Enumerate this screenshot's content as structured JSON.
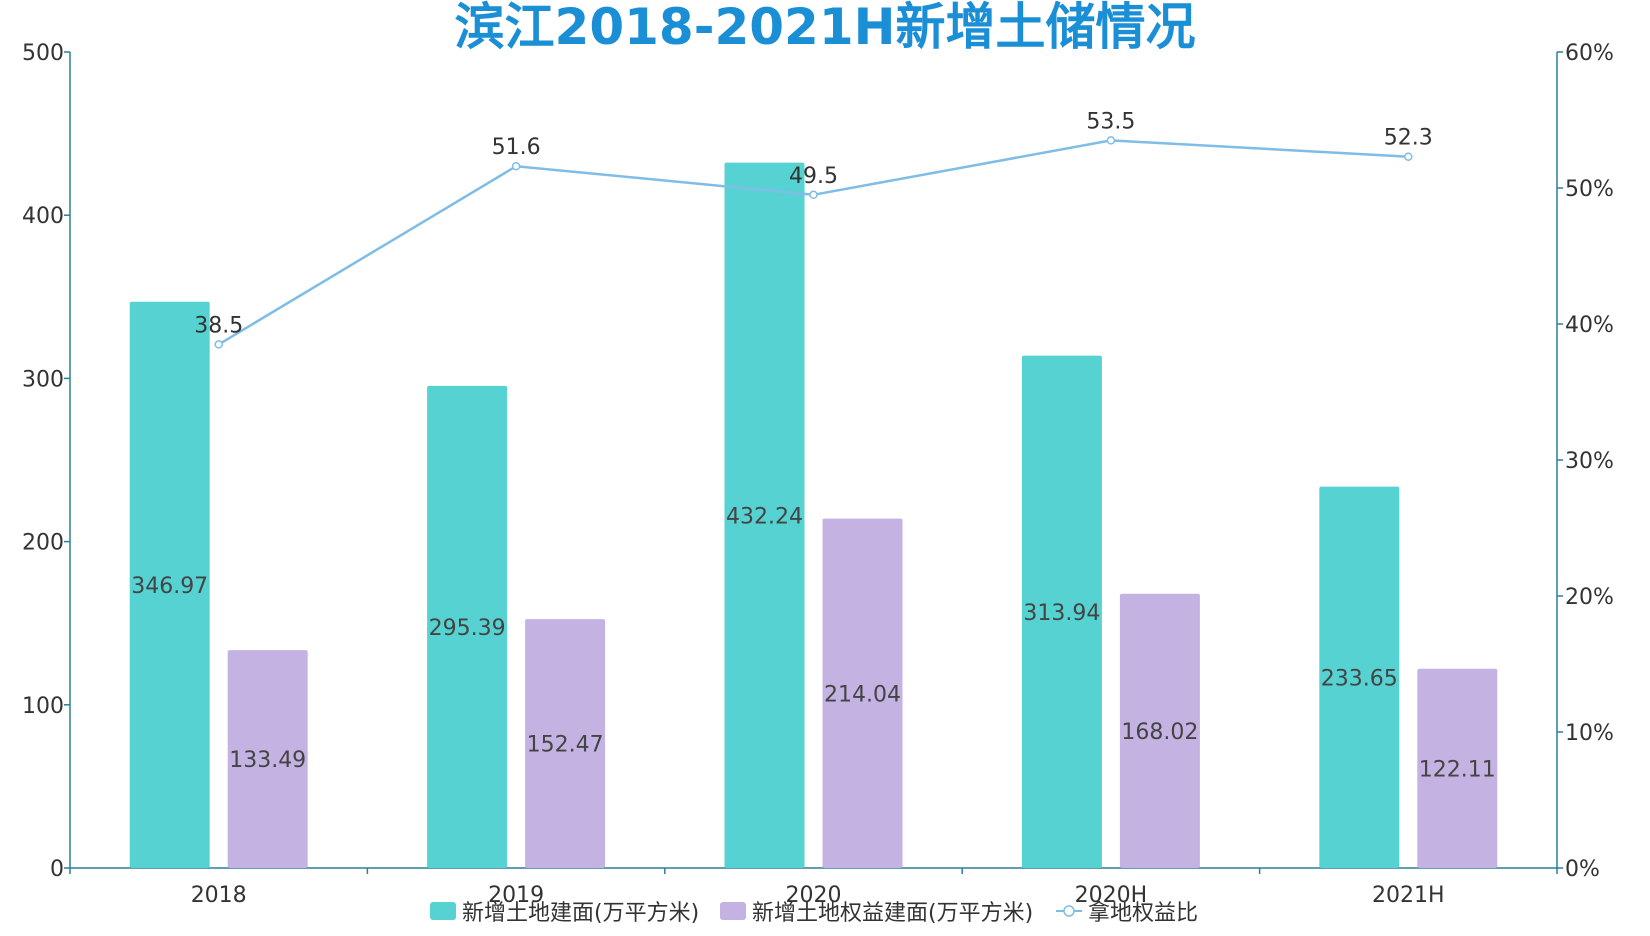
{
  "chart_data": {
    "type": "bar",
    "title": "滨江2018-2021H新增土储情况",
    "categories": [
      "2018",
      "2019",
      "2020",
      "2020H",
      "2021H"
    ],
    "series": [
      {
        "name": "新增土地建面(万平方米)",
        "kind": "bar",
        "axis": "left",
        "color": "#56d2d2",
        "values": [
          346.97,
          295.39,
          432.24,
          313.94,
          233.65
        ],
        "labels": [
          "346.97",
          "295.39",
          "432.24",
          "313.94",
          "233.65"
        ]
      },
      {
        "name": "新增土地权益建面(万平方米)",
        "kind": "bar",
        "axis": "left",
        "color": "#c4b3e2",
        "values": [
          133.49,
          152.47,
          214.04,
          168.02,
          122.11
        ],
        "labels": [
          "133.49",
          "152.47",
          "214.04",
          "168.02",
          "122.11"
        ]
      },
      {
        "name": "拿地权益比",
        "kind": "line",
        "axis": "right",
        "color": "#7fbde6",
        "values": [
          38.5,
          51.6,
          49.5,
          53.5,
          52.3
        ],
        "labels": [
          "38.5",
          "51.6",
          "49.5",
          "53.5",
          "52.3"
        ]
      }
    ],
    "y_left": {
      "min": 0,
      "max": 500,
      "ticks": [
        "0",
        "100",
        "200",
        "300",
        "400",
        "500"
      ]
    },
    "y_right": {
      "min": 0,
      "max": 60,
      "ticks": [
        "0%",
        "10%",
        "20%",
        "30%",
        "40%",
        "50%",
        "60%"
      ]
    },
    "legend_position": "bottom-center"
  }
}
